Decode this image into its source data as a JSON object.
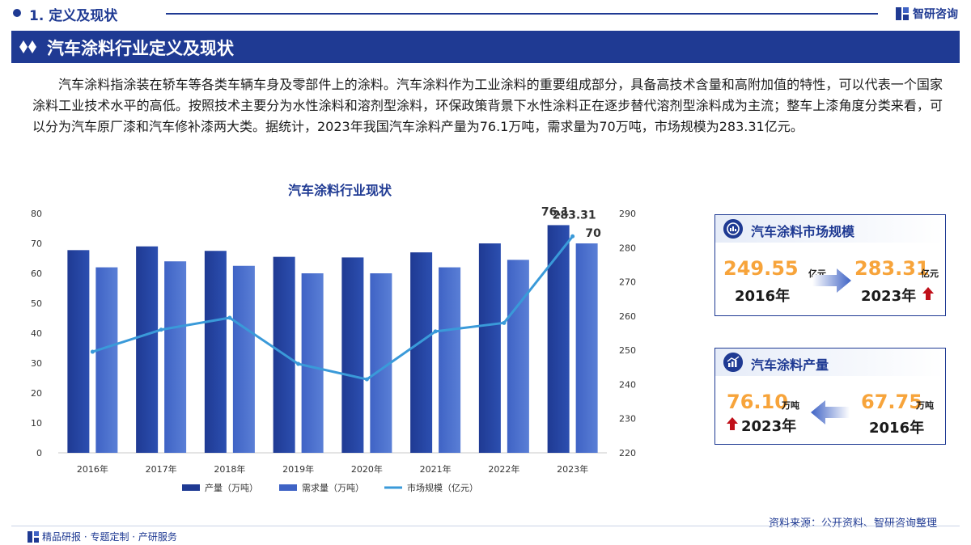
{
  "header": {
    "section_title": "1. 定义及现状",
    "brand": "智研咨询"
  },
  "banner": {
    "title": "汽车涂料行业定义及现状"
  },
  "intro": {
    "text": "汽车涂料指涂装在轿车等各类车辆车身及零部件上的涂料。汽车涂料作为工业涂料的重要组成部分，具备高技术含量和高附加值的特性，可以代表一个国家涂料工业技术水平的高低。按照技术主要分为水性涂料和溶剂型涂料，环保政策背景下水性涂料正在逐步替代溶剂型涂料成为主流；整车上漆角度分类来看，可以分为汽车原厂漆和汽车修补漆两大类。据统计，2023年我国汽车涂料产量为76.1万吨，需求量为70万吨，市场规模为283.31亿元。"
  },
  "chart_data": {
    "type": "bar",
    "title": "汽车涂料行业现状",
    "categories": [
      "2016年",
      "2017年",
      "2018年",
      "2019年",
      "2020年",
      "2021年",
      "2022年",
      "2023年"
    ],
    "series": [
      {
        "name": "产量（万吨）",
        "type": "bar",
        "axis": "left",
        "color": "#1f3a93",
        "values": [
          67.75,
          69,
          67.5,
          65.5,
          65.3,
          67,
          70,
          76.1
        ]
      },
      {
        "name": "需求量（万吨）",
        "type": "bar",
        "axis": "left",
        "color": "#3f63c5",
        "values": [
          62,
          64,
          62.5,
          60,
          60,
          62,
          64.5,
          70
        ]
      },
      {
        "name": "市场规模（亿元）",
        "type": "line",
        "axis": "right",
        "color": "#3a9ad9",
        "values": [
          249.55,
          256,
          259.5,
          246,
          241.5,
          255.5,
          258,
          283.31
        ]
      }
    ],
    "data_labels": [
      {
        "series": 0,
        "index": 7,
        "text": "76.1"
      },
      {
        "series": 2,
        "index": 7,
        "text": "283.31"
      },
      {
        "series": 1,
        "index": 7,
        "text": "70"
      }
    ],
    "y_left": {
      "min": 0,
      "max": 80,
      "ticks": [
        "0",
        "10",
        "20",
        "30",
        "40",
        "50",
        "60",
        "70",
        "80"
      ]
    },
    "y_right": {
      "min": 220,
      "max": 290,
      "ticks": [
        "220",
        "230",
        "240",
        "250",
        "260",
        "270",
        "280",
        "290"
      ]
    },
    "legend_placement": "bottom-center",
    "grid": false
  },
  "card_market": {
    "title": "汽车涂料市场规模",
    "start_value": "249.55",
    "start_unit": "亿元",
    "start_year": "2016年",
    "end_value": "283.31",
    "end_unit": "亿元",
    "end_year": "2023年"
  },
  "card_output": {
    "title": "汽车涂料产量",
    "end_value": "76.10",
    "end_unit": "万吨",
    "end_year": "2023年",
    "start_value": "67.75",
    "start_unit": "万吨",
    "start_year": "2016年"
  },
  "footer": {
    "source": "资料来源：公开资料、智研咨询整理",
    "tagline": "精品研报 · 专题定制 · 产研服务"
  },
  "colors": {
    "brand_blue": "#1f3a93",
    "highlight_orange": "#f7a43b",
    "up_red": "#c0101a"
  }
}
